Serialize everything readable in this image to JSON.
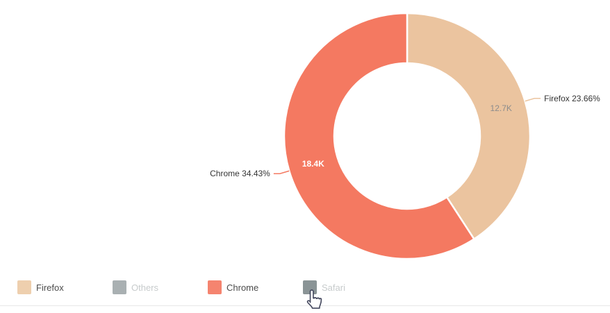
{
  "page": {
    "background": "#ffffff"
  },
  "colors": {
    "outside_label": "#333333",
    "legend_text": "#4c4c4c",
    "legend_text_disabled": "#c7cbcc",
    "slice_border": "#ffffff",
    "divider": "#e8e8e8"
  },
  "icons": {
    "cursor_icon": "hand-pointer"
  },
  "chart_data": {
    "type": "pie",
    "subtype": "donut",
    "title": "",
    "legend_position": "bottom-left",
    "start_angle": "top",
    "direction": "clockwise",
    "slices": [
      {
        "name": "Firefox",
        "value": 12700,
        "value_label": "12.7K",
        "share_label": "Firefox 23.66%",
        "percent_of_total": 23.66,
        "selected": true,
        "color": "#ebc49f",
        "legend_swatch_color": "#eecfae",
        "inner_label_color": "#8c8c8c",
        "inner_label_weight": "normal"
      },
      {
        "name": "Others",
        "selected": false,
        "legend_swatch_color": "#a9b0b2"
      },
      {
        "name": "Chrome",
        "value": 18400,
        "value_label": "18.4K",
        "share_label": "Chrome 34.43%",
        "percent_of_total": 34.43,
        "selected": true,
        "color": "#f47961",
        "legend_swatch_color": "#f5846f",
        "inner_label_color": "#ffffff",
        "inner_label_weight": "bold"
      },
      {
        "name": "Safari",
        "selected": false,
        "legend_swatch_color": "#8a9496"
      }
    ]
  }
}
